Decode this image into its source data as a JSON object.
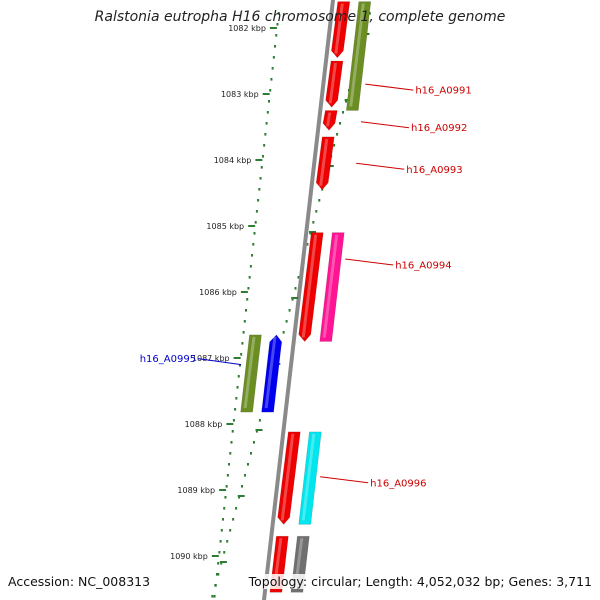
{
  "title": "Ralstonia eutropha H16 chromosome 1, complete genome",
  "footer": {
    "accession": "Accession: NC_008313",
    "topology": "Topology: circular; Length: 4,052,032 bp; Genes: 3,711"
  },
  "ticks": [
    {
      "label": "1082 kbp",
      "kbp": 1082
    },
    {
      "label": "1083 kbp",
      "kbp": 1083
    },
    {
      "label": "1084 kbp",
      "kbp": 1084
    },
    {
      "label": "1085 kbp",
      "kbp": 1085
    },
    {
      "label": "1086 kbp",
      "kbp": 1086
    },
    {
      "label": "1087 kbp",
      "kbp": 1087
    },
    {
      "label": "1088 kbp",
      "kbp": 1088
    },
    {
      "label": "1089 kbp",
      "kbp": 1089
    },
    {
      "label": "1090 kbp",
      "kbp": 1090
    }
  ],
  "colors": {
    "backbone": "#8a8a8a",
    "tick": "#2e7d32",
    "label_red": "#cc0000",
    "label_blue": "#0000cc"
  },
  "features": [
    {
      "name": "olive-top",
      "track": 2,
      "start_kbp": 1081.6,
      "end_kbp": 1083.25,
      "color": "#6b8e23",
      "arrow": "none"
    },
    {
      "name": "red-top",
      "track": 1,
      "start_kbp": 1081.6,
      "end_kbp": 1082.45,
      "color": "#ee0000",
      "arrow": "down"
    },
    {
      "name": "red-1083",
      "track": 1,
      "start_kbp": 1082.5,
      "end_kbp": 1083.2,
      "color": "#ee0000",
      "arrow": "down"
    },
    {
      "name": "red-A0992",
      "track": 1,
      "start_kbp": 1083.25,
      "end_kbp": 1083.55,
      "color": "#ee0000",
      "arrow": "down"
    },
    {
      "name": "red-A0993",
      "track": 1,
      "start_kbp": 1083.65,
      "end_kbp": 1084.45,
      "color": "#ee0000",
      "arrow": "down"
    },
    {
      "name": "red-A0994",
      "track": 1,
      "start_kbp": 1085.1,
      "end_kbp": 1086.75,
      "color": "#ee0000",
      "arrow": "down"
    },
    {
      "name": "pink-A0994",
      "track": 2,
      "start_kbp": 1085.1,
      "end_kbp": 1086.75,
      "color": "#ff1493",
      "arrow": "none"
    },
    {
      "name": "olive-A0995",
      "track": -2,
      "start_kbp": 1086.65,
      "end_kbp": 1087.82,
      "color": "#6b8e23",
      "arrow": "none"
    },
    {
      "name": "blue-A0995",
      "track": -1,
      "start_kbp": 1086.65,
      "end_kbp": 1087.82,
      "color": "#0000ee",
      "arrow": "up"
    },
    {
      "name": "red-A0996",
      "track": 1,
      "start_kbp": 1088.12,
      "end_kbp": 1089.52,
      "color": "#ee0000",
      "arrow": "down"
    },
    {
      "name": "cyan-A0996",
      "track": 2,
      "start_kbp": 1088.12,
      "end_kbp": 1089.52,
      "color": "#00e5ee",
      "arrow": "none"
    },
    {
      "name": "red-bottom",
      "track": 1,
      "start_kbp": 1089.7,
      "end_kbp": 1090.55,
      "color": "#ee0000",
      "arrow": "none"
    },
    {
      "name": "grey-bottom",
      "track": 2,
      "start_kbp": 1089.7,
      "end_kbp": 1090.55,
      "color": "#707070",
      "arrow": "none"
    }
  ],
  "gene_labels": [
    {
      "label": "h16_A0991",
      "side": "right",
      "kbp": 1082.85,
      "color": "#cc0000"
    },
    {
      "label": "h16_A0992",
      "side": "right",
      "kbp": 1083.42,
      "color": "#cc0000"
    },
    {
      "label": "h16_A0993",
      "side": "right",
      "kbp": 1084.05,
      "color": "#cc0000"
    },
    {
      "name": "h16_A0994",
      "label": "h16_A0994",
      "side": "right",
      "kbp": 1085.5,
      "color": "#cc0000"
    },
    {
      "label": "h16_A0995",
      "side": "left",
      "kbp": 1087.1,
      "color": "#0000cc"
    },
    {
      "label": "h16_A0996",
      "side": "right",
      "kbp": 1088.8,
      "color": "#cc0000"
    }
  ]
}
